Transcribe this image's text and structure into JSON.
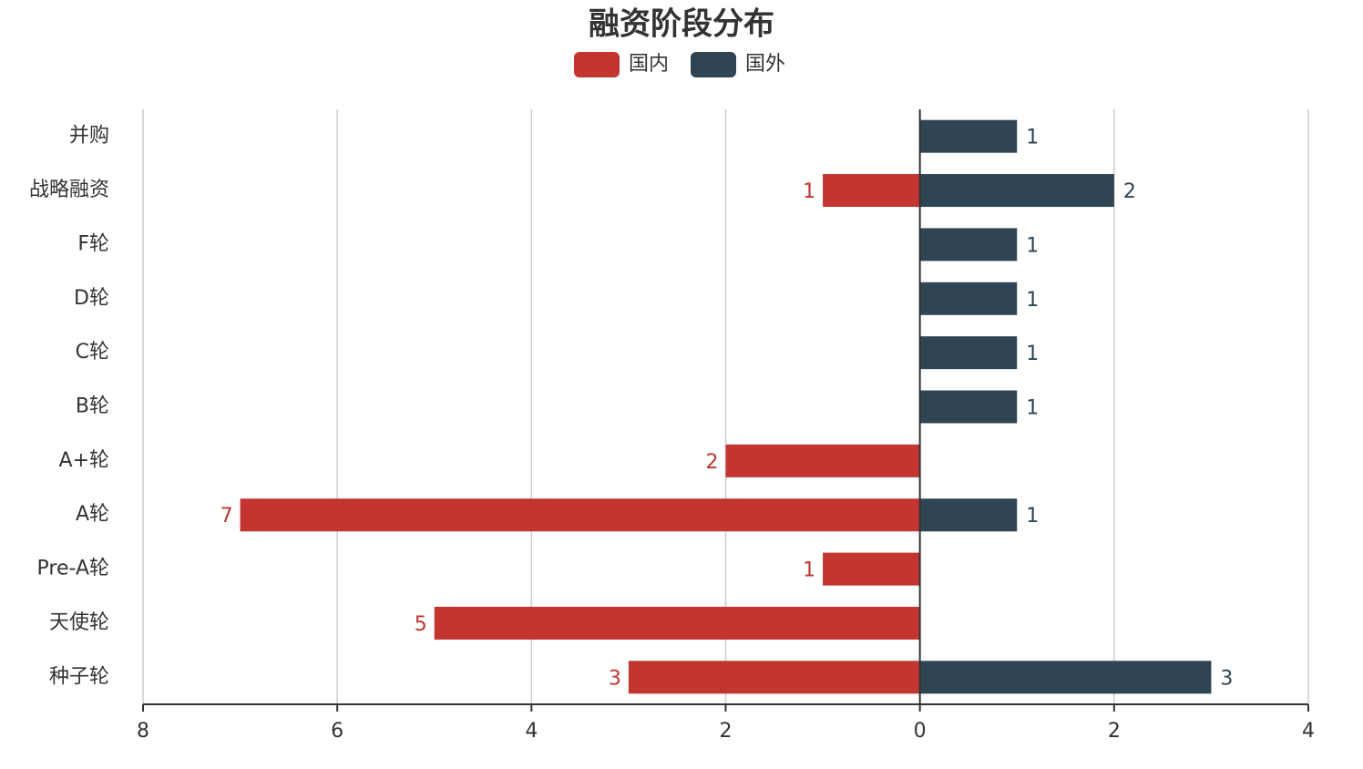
{
  "chart_data": {
    "type": "bar",
    "orientation": "horizontal",
    "title": "融资阶段分布",
    "categories": [
      "并购",
      "战略融资",
      "F轮",
      "D轮",
      "C轮",
      "B轮",
      "A+轮",
      "A轮",
      "Pre-A轮",
      "天使轮",
      "种子轮"
    ],
    "series": [
      {
        "name": "国内",
        "color": "#c23531",
        "values": [
          null,
          -1,
          null,
          null,
          null,
          null,
          -2,
          -7,
          -1,
          -5,
          -3
        ],
        "value_labels": [
          null,
          "1",
          null,
          null,
          null,
          null,
          "2",
          "7",
          "1",
          "5",
          "3"
        ]
      },
      {
        "name": "国外",
        "color": "#2f4554",
        "values": [
          1,
          2,
          1,
          1,
          1,
          1,
          null,
          1,
          null,
          null,
          3
        ]
      }
    ],
    "xlim": [
      -8,
      4
    ],
    "xticks": [
      {
        "value": -8,
        "label": "8"
      },
      {
        "value": -6,
        "label": "6"
      },
      {
        "value": -4,
        "label": "4"
      },
      {
        "value": -2,
        "label": "2"
      },
      0,
      2,
      4
    ],
    "grid": true,
    "legend": "top"
  }
}
